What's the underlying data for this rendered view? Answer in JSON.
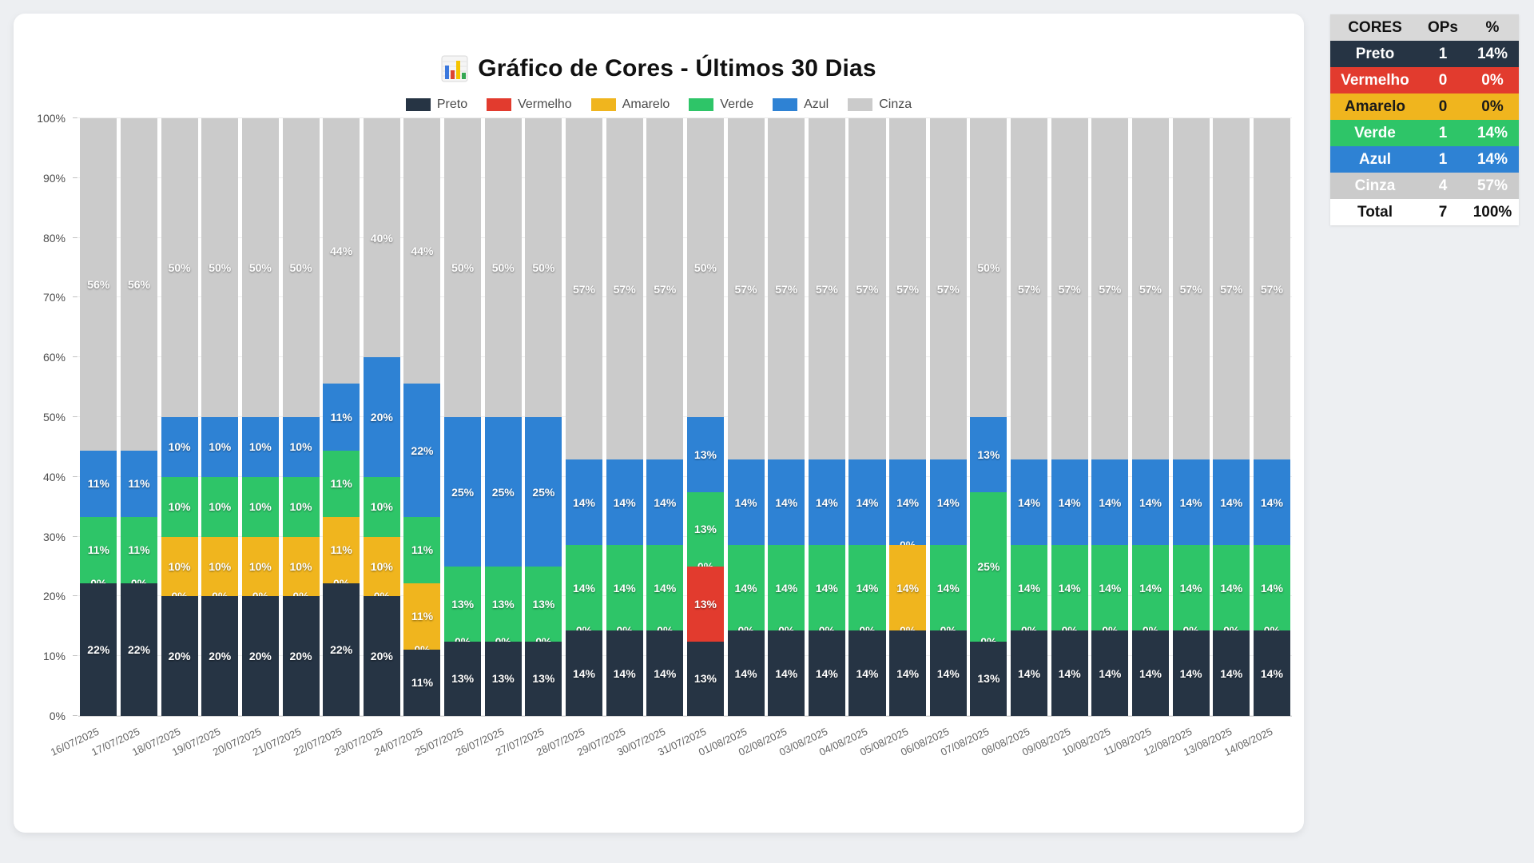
{
  "title": {
    "icon_char": "📊",
    "text": "Gráfico de Cores - Últimos 30 Dias"
  },
  "chart_data": {
    "type": "bar",
    "variant": "stacked-100-percent",
    "title": "Gráfico de Cores - Últimos 30 Dias",
    "legend_position": "top",
    "grid": true,
    "ylim": [
      0,
      100
    ],
    "y_ticks": [
      "0%",
      "10%",
      "20%",
      "30%",
      "40%",
      "50%",
      "60%",
      "70%",
      "80%",
      "90%",
      "100%"
    ],
    "x_tick_rotation": -25,
    "categories": [
      "16/07/2025",
      "17/07/2025",
      "18/07/2025",
      "19/07/2025",
      "20/07/2025",
      "21/07/2025",
      "22/07/2025",
      "23/07/2025",
      "24/07/2025",
      "25/07/2025",
      "26/07/2025",
      "27/07/2025",
      "28/07/2025",
      "29/07/2025",
      "30/07/2025",
      "31/07/2025",
      "01/08/2025",
      "02/08/2025",
      "03/08/2025",
      "04/08/2025",
      "05/08/2025",
      "06/08/2025",
      "07/08/2025",
      "08/08/2025",
      "09/08/2025",
      "10/08/2025",
      "11/08/2025",
      "12/08/2025",
      "13/08/2025",
      "14/08/2025"
    ],
    "series": [
      {
        "name": "Preto",
        "color": "#263444",
        "counts": [
          2,
          2,
          2,
          2,
          2,
          2,
          2,
          2,
          1,
          1,
          1,
          1,
          1,
          1,
          1,
          1,
          1,
          1,
          1,
          1,
          1,
          1,
          1,
          1,
          1,
          1,
          1,
          1,
          1,
          1
        ],
        "label_pcts": [
          22,
          22,
          20,
          20,
          20,
          20,
          22,
          20,
          11,
          13,
          13,
          13,
          14,
          14,
          14,
          13,
          14,
          14,
          14,
          14,
          14,
          14,
          13,
          14,
          14,
          14,
          14,
          14,
          14,
          14
        ]
      },
      {
        "name": "Vermelho",
        "color": "#e23b2e",
        "counts": [
          0,
          0,
          0,
          0,
          0,
          0,
          0,
          0,
          0,
          0,
          0,
          0,
          0,
          0,
          0,
          1,
          0,
          0,
          0,
          0,
          0,
          0,
          0,
          0,
          0,
          0,
          0,
          0,
          0,
          0
        ],
        "label_pcts": [
          0,
          0,
          0,
          0,
          0,
          0,
          0,
          0,
          0,
          0,
          0,
          0,
          0,
          0,
          0,
          13,
          0,
          0,
          0,
          0,
          0,
          0,
          0,
          0,
          0,
          0,
          0,
          0,
          0,
          0
        ]
      },
      {
        "name": "Amarelo",
        "color": "#f0b51e",
        "counts": [
          0,
          0,
          1,
          1,
          1,
          1,
          1,
          1,
          1,
          0,
          0,
          0,
          0,
          0,
          0,
          0,
          0,
          0,
          0,
          0,
          1,
          0,
          0,
          0,
          0,
          0,
          0,
          0,
          0,
          0
        ],
        "label_pcts": [
          0,
          0,
          10,
          10,
          10,
          10,
          11,
          10,
          11,
          0,
          0,
          0,
          0,
          0,
          0,
          0,
          0,
          0,
          0,
          0,
          14,
          0,
          0,
          0,
          0,
          0,
          0,
          0,
          0,
          0
        ]
      },
      {
        "name": "Verde",
        "color": "#2ec568",
        "counts": [
          1,
          1,
          1,
          1,
          1,
          1,
          1,
          1,
          1,
          1,
          1,
          1,
          1,
          1,
          1,
          1,
          1,
          1,
          1,
          1,
          0,
          1,
          2,
          1,
          1,
          1,
          1,
          1,
          1,
          1
        ],
        "label_pcts": [
          11,
          11,
          10,
          10,
          10,
          10,
          11,
          10,
          11,
          13,
          13,
          13,
          14,
          14,
          14,
          13,
          14,
          14,
          14,
          14,
          0,
          14,
          25,
          14,
          14,
          14,
          14,
          14,
          14,
          14
        ]
      },
      {
        "name": "Azul",
        "color": "#2e82d4",
        "counts": [
          1,
          1,
          1,
          1,
          1,
          1,
          1,
          2,
          2,
          2,
          2,
          2,
          1,
          1,
          1,
          1,
          1,
          1,
          1,
          1,
          1,
          1,
          1,
          1,
          1,
          1,
          1,
          1,
          1,
          1
        ],
        "label_pcts": [
          11,
          11,
          10,
          10,
          10,
          10,
          11,
          20,
          22,
          25,
          25,
          25,
          14,
          14,
          14,
          13,
          14,
          14,
          14,
          14,
          14,
          14,
          13,
          14,
          14,
          14,
          14,
          14,
          14,
          14
        ]
      },
      {
        "name": "Cinza",
        "color": "#cbcbcb",
        "counts": [
          5,
          5,
          5,
          5,
          5,
          5,
          4,
          4,
          4,
          4,
          4,
          4,
          4,
          4,
          4,
          4,
          4,
          4,
          4,
          4,
          4,
          4,
          4,
          4,
          4,
          4,
          4,
          4,
          4,
          4
        ],
        "label_pcts": [
          56,
          56,
          50,
          50,
          50,
          50,
          44,
          40,
          44,
          50,
          50,
          50,
          57,
          57,
          57,
          50,
          57,
          57,
          57,
          57,
          57,
          57,
          50,
          57,
          57,
          57,
          57,
          57,
          57,
          57
        ]
      }
    ]
  },
  "summary_table": {
    "headers": [
      "CORES",
      "OPs",
      "%"
    ],
    "header_bg": "#d8d8d8",
    "header_fg": "#111111",
    "rows": [
      {
        "label": "Preto",
        "ops": "1",
        "pct": "14%",
        "bg": "#263444",
        "fg": "#ffffff"
      },
      {
        "label": "Vermelho",
        "ops": "0",
        "pct": "0%",
        "bg": "#e23b2e",
        "fg": "#ffffff"
      },
      {
        "label": "Amarelo",
        "ops": "0",
        "pct": "0%",
        "bg": "#f0b51e",
        "fg": "#1a1a1a"
      },
      {
        "label": "Verde",
        "ops": "1",
        "pct": "14%",
        "bg": "#2ec568",
        "fg": "#ffffff"
      },
      {
        "label": "Azul",
        "ops": "1",
        "pct": "14%",
        "bg": "#2e82d4",
        "fg": "#ffffff"
      },
      {
        "label": "Cinza",
        "ops": "4",
        "pct": "57%",
        "bg": "#cbcbcb",
        "fg": "#ffffff"
      },
      {
        "label": "Total",
        "ops": "7",
        "pct": "100%",
        "bg": "#ffffff",
        "fg": "#111111"
      }
    ]
  },
  "colors": {
    "page_bg": "#edeff2",
    "card_bg": "#ffffff",
    "axis_text": "#4d4d4d",
    "date_text": "#666666",
    "legend_text": "#4a4a4a",
    "grid_line": "#ededed",
    "axis_line": "#d6d6d6"
  }
}
